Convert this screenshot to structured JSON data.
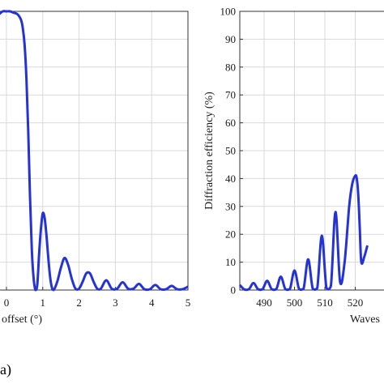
{
  "chart_data": [
    {
      "type": "line",
      "panel": "left",
      "xlabel": "offset (°)",
      "ylabel": "",
      "xlim": [
        -0.2,
        5
      ],
      "ylim": [
        0,
        100
      ],
      "xticks": [
        0,
        1,
        2,
        3,
        4,
        5
      ],
      "xtick_labels": [
        "0",
        "1",
        "2",
        "3",
        "4",
        "5"
      ],
      "grid": true,
      "color": "#2532d6",
      "series": [
        {
          "x": [
            -0.2,
            -0.1,
            0.0,
            0.1,
            0.2,
            0.3,
            0.4,
            0.45,
            0.5,
            0.55,
            0.6,
            0.65,
            0.7,
            0.75,
            0.8,
            0.85,
            0.9,
            0.95,
            1.0,
            1.05,
            1.1,
            1.15,
            1.2,
            1.25,
            1.3,
            1.4,
            1.5,
            1.6,
            1.7,
            1.8,
            1.9,
            2.0,
            2.1,
            2.2,
            2.3,
            2.4,
            2.5,
            2.6,
            2.75,
            2.9,
            3.05,
            3.2,
            3.35,
            3.5,
            3.65,
            3.8,
            3.95,
            4.1,
            4.25,
            4.4,
            4.55,
            4.7,
            4.85,
            5.0
          ],
          "y": [
            99,
            100,
            100,
            100,
            99.5,
            99,
            97,
            94,
            88,
            76,
            57,
            33,
            14,
            4,
            0,
            2,
            13,
            22,
            27.5,
            26,
            20,
            12,
            5,
            1,
            0,
            3,
            8,
            11.5,
            9,
            4,
            0.5,
            0.5,
            3,
            6,
            6,
            3,
            0.5,
            0.5,
            3.5,
            0.5,
            0.5,
            2.8,
            0.5,
            0.5,
            2.2,
            0.3,
            0.3,
            1.8,
            0.3,
            0.3,
            1.5,
            0.3,
            0.3,
            1.2
          ]
        }
      ]
    },
    {
      "type": "line",
      "panel": "right",
      "xlabel": "Waves",
      "ylabel": "Diffraction efficiency (%)",
      "xlim": [
        482,
        530
      ],
      "ylim": [
        0,
        100
      ],
      "xticks": [
        490,
        500,
        510,
        520
      ],
      "xtick_labels": [
        "490",
        "500",
        "510",
        "520"
      ],
      "yticks": [
        0,
        10,
        20,
        30,
        40,
        50,
        60,
        70,
        80,
        90,
        100
      ],
      "ytick_labels": [
        "0",
        "10",
        "20",
        "30",
        "40",
        "50",
        "60",
        "70",
        "80",
        "90",
        "100"
      ],
      "grid": true,
      "color": "#2532d6",
      "series": [
        {
          "x": [
            482,
            483.5,
            485,
            486.5,
            488,
            489.5,
            491,
            492.5,
            494,
            495.5,
            497,
            498.5,
            500,
            501.5,
            503,
            504.5,
            506,
            507.5,
            509,
            510.5,
            512,
            513.5,
            515,
            516.5,
            518,
            519,
            520,
            520.5,
            521,
            521.5,
            522,
            523,
            524
          ],
          "y": [
            1.8,
            0.2,
            0.3,
            2.5,
            0.3,
            0.3,
            3.3,
            0.3,
            0.3,
            4.8,
            0.3,
            0.4,
            7,
            0.4,
            0.5,
            11,
            0.5,
            0.7,
            19.5,
            0.8,
            1.5,
            28,
            3,
            10,
            30,
            38,
            41,
            40,
            34,
            22,
            10,
            12,
            16
          ]
        }
      ]
    }
  ],
  "caption": "(a)"
}
